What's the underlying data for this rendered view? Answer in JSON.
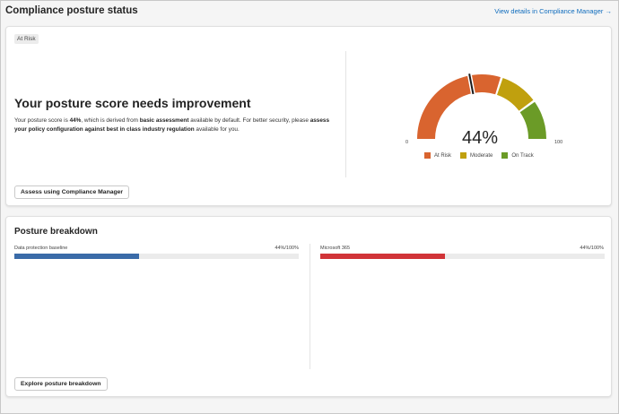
{
  "header": {
    "title": "Compliance posture status",
    "view_link": "View details in Compliance Manager",
    "view_link_arrow": "→"
  },
  "posture_card": {
    "badge": "At Risk",
    "headline": "Your posture score needs improvement",
    "desc": {
      "p1": "Your posture score is ",
      "score_bold": "44%",
      "p2": ", which is derived from ",
      "basic_bold": "basic assessment",
      "p3": " available by default. For better security, please ",
      "assess_bold": "assess your policy configuration against best in class industry regulation",
      "p4": " available for you."
    },
    "assess_button": "Assess using Compliance Manager"
  },
  "gauge": {
    "score_text": "44%",
    "score": 44,
    "min_label": "0",
    "max_label": "100",
    "ranges": [
      {
        "name": "At Risk",
        "from": 0,
        "to": 60,
        "color": "#d9642f"
      },
      {
        "name": "Moderate",
        "from": 60,
        "to": 80,
        "color": "#c0a00e"
      },
      {
        "name": "On Track",
        "from": 80,
        "to": 100,
        "color": "#6b9b27"
      }
    ],
    "legend": [
      {
        "label": "At Risk",
        "color": "#d9642f"
      },
      {
        "label": "Moderate",
        "color": "#c0a00e"
      },
      {
        "label": "On Track",
        "color": "#6b9b27"
      }
    ]
  },
  "breakdown": {
    "title": "Posture breakdown",
    "items": [
      {
        "label": "Data protection baseline",
        "value_text": "44%/100%",
        "value": 0.44,
        "color": "#3a6ba8"
      },
      {
        "label": "Microsoft 365",
        "value_text": "44%/100%",
        "value": 0.44,
        "color": "#d13438"
      }
    ],
    "explore_button": "Explore posture breakdown"
  }
}
